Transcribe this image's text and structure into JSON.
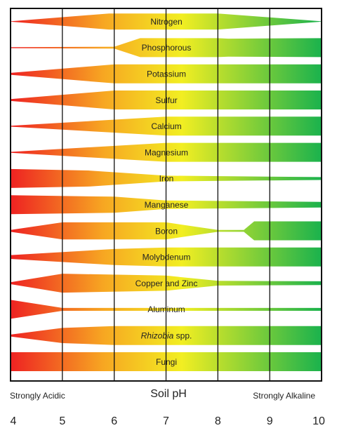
{
  "x_axis": {
    "title": "Soil pH",
    "left_label": "Strongly Acidic",
    "right_label": "Strongly Alkaline",
    "ticks": [
      "4",
      "5",
      "6",
      "7",
      "8",
      "9",
      "10"
    ]
  },
  "colors": {
    "acid": "#ee2222",
    "mid_orange": "#f7a722",
    "neutral_yellow": "#f2ee22",
    "alkaline": "#1ab24d",
    "grid": "#111111"
  },
  "chart_data": {
    "type": "area",
    "x_range": [
      4,
      10
    ],
    "note_units": "availability shown as relative band thickness (0 to 1) at pH points",
    "series": [
      {
        "name": "Nitrogen",
        "points": [
          [
            4,
            0.02
          ],
          [
            5.9,
            0.85
          ],
          [
            8,
            0.85
          ],
          [
            10,
            0.02
          ]
        ]
      },
      {
        "name": "Phosphorous",
        "points": [
          [
            4,
            0.05
          ],
          [
            6,
            0.1
          ],
          [
            6.5,
            1
          ],
          [
            7.5,
            1
          ],
          [
            8,
            1
          ],
          [
            8.2,
            0.95
          ],
          [
            10,
            1
          ]
        ]
      },
      {
        "name": "Potassium",
        "points": [
          [
            4,
            0.1
          ],
          [
            6,
            1
          ],
          [
            10,
            1
          ]
        ]
      },
      {
        "name": "Sulfur",
        "points": [
          [
            4,
            0.1
          ],
          [
            6,
            1
          ],
          [
            10,
            1
          ]
        ]
      },
      {
        "name": "Calcium",
        "points": [
          [
            4,
            0.05
          ],
          [
            7,
            1
          ],
          [
            10,
            1
          ]
        ]
      },
      {
        "name": "Magnesium",
        "points": [
          [
            4,
            0.05
          ],
          [
            7,
            1
          ],
          [
            10,
            1
          ]
        ]
      },
      {
        "name": "Iron",
        "points": [
          [
            4,
            1
          ],
          [
            5.5,
            0.85
          ],
          [
            7,
            0.3
          ],
          [
            10,
            0.15
          ]
        ]
      },
      {
        "name": "Manganese",
        "points": [
          [
            4,
            1
          ],
          [
            6,
            0.85
          ],
          [
            7,
            0.45
          ],
          [
            10,
            0.3
          ]
        ]
      },
      {
        "name": "Boron",
        "points": [
          [
            4,
            0.1
          ],
          [
            5,
            0.9
          ],
          [
            7,
            0.9
          ],
          [
            8,
            0.1
          ],
          [
            8.5,
            0.1
          ],
          [
            8.7,
            1
          ],
          [
            10,
            1
          ]
        ]
      },
      {
        "name": "Molybdenum",
        "points": [
          [
            4,
            0.2
          ],
          [
            6,
            0.85
          ],
          [
            7,
            1
          ],
          [
            10,
            1
          ]
        ]
      },
      {
        "name": "Copper and Zinc",
        "points": [
          [
            4,
            0.1
          ],
          [
            5,
            1
          ],
          [
            7,
            0.8
          ],
          [
            8,
            0.25
          ],
          [
            10,
            0.2
          ]
        ]
      },
      {
        "name": "Aluminum",
        "points": [
          [
            4,
            1
          ],
          [
            5,
            0.15
          ],
          [
            10,
            0.15
          ]
        ]
      },
      {
        "name": "Rhizobia spp.",
        "points": [
          [
            4,
            0.1
          ],
          [
            5,
            0.8
          ],
          [
            6,
            1
          ],
          [
            10,
            1
          ]
        ]
      },
      {
        "name": "Fungi",
        "points": [
          [
            4,
            1
          ],
          [
            10,
            1
          ]
        ]
      }
    ]
  }
}
